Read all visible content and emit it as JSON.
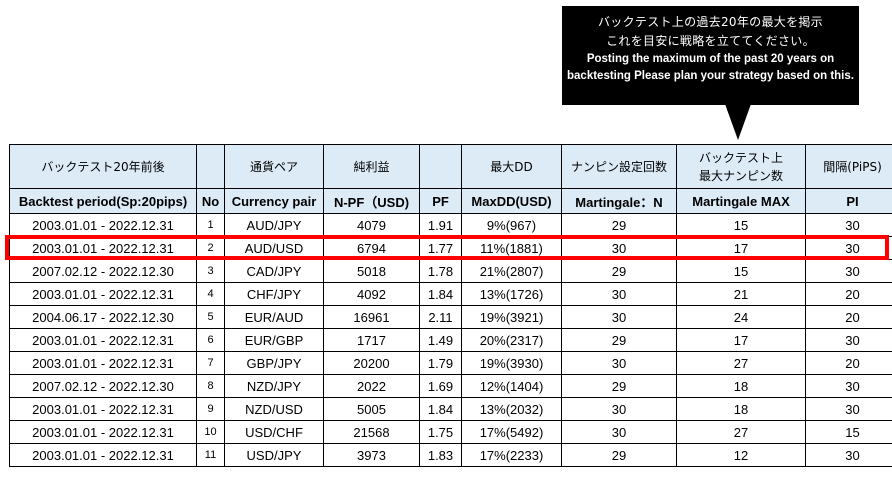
{
  "callout": {
    "line_jp_1": "バックテスト上の過去20年の最大を掲示",
    "line_jp_2": "これを目安に戦略を立ててください。",
    "line_en_1": "Posting the maximum of the past 20 years on",
    "line_en_2": "backtesting Please plan your strategy based on this."
  },
  "headers_jp": {
    "period": "バックテスト20年前後",
    "no": "",
    "pair": "通貨ペア",
    "npf": "純利益",
    "pf": "",
    "maxdd": "最大DD",
    "martingale_n": "ナンピン設定回数",
    "martingale_max_1": "バックテスト上",
    "martingale_max_2": "最大ナンピン数",
    "pips": "間隔(PiPS)"
  },
  "headers_en": {
    "period": "Backtest period(Sp:20pips)",
    "no": "No",
    "pair": "Currency pair",
    "npf": "N-PF（USD)",
    "pf": "PF",
    "maxdd": "MaxDD(USD)",
    "martingale_n": "Martingale：N",
    "martingale_max": "Martingale MAX",
    "pips": "PI"
  },
  "rows": [
    {
      "period": "2003.01.01 - 2022.12.31",
      "no": "1",
      "pair": "AUD/JPY",
      "npf": "4079",
      "pf": "1.91",
      "maxdd": "9%(967)",
      "n": "29",
      "max": "15",
      "pi": "30"
    },
    {
      "period": "2003.01.01 - 2022.12.31",
      "no": "2",
      "pair": "AUD/USD",
      "npf": "6794",
      "pf": "1.77",
      "maxdd": "11%(1881)",
      "n": "30",
      "max": "17",
      "pi": "30"
    },
    {
      "period": "2007.02.12 - 2022.12.30",
      "no": "3",
      "pair": "CAD/JPY",
      "npf": "5018",
      "pf": "1.78",
      "maxdd": "21%(2807)",
      "n": "29",
      "max": "15",
      "pi": "30"
    },
    {
      "period": "2003.01.01 - 2022.12.31",
      "no": "4",
      "pair": "CHF/JPY",
      "npf": "4092",
      "pf": "1.84",
      "maxdd": "13%(1726)",
      "n": "30",
      "max": "21",
      "pi": "20"
    },
    {
      "period": "2004.06.17 - 2022.12.30",
      "no": "5",
      "pair": "EUR/AUD",
      "npf": "16961",
      "pf": "2.11",
      "maxdd": "19%(3921)",
      "n": "30",
      "max": "24",
      "pi": "20"
    },
    {
      "period": "2003.01.01 - 2022.12.31",
      "no": "6",
      "pair": "EUR/GBP",
      "npf": "1717",
      "pf": "1.49",
      "maxdd": "20%(2317)",
      "n": "29",
      "max": "17",
      "pi": "30"
    },
    {
      "period": "2003.01.01 - 2022.12.31",
      "no": "7",
      "pair": "GBP/JPY",
      "npf": "20200",
      "pf": "1.79",
      "maxdd": "19%(3930)",
      "n": "30",
      "max": "27",
      "pi": "20"
    },
    {
      "period": "2007.02.12 - 2022.12.30",
      "no": "8",
      "pair": "NZD/JPY",
      "npf": "2022",
      "pf": "1.69",
      "maxdd": "12%(1404)",
      "n": "29",
      "max": "18",
      "pi": "30"
    },
    {
      "period": "2003.01.01 - 2022.12.31",
      "no": "9",
      "pair": "NZD/USD",
      "npf": "5005",
      "pf": "1.84",
      "maxdd": "13%(2032)",
      "n": "30",
      "max": "18",
      "pi": "30"
    },
    {
      "period": "2003.01.01 - 2022.12.31",
      "no": "10",
      "pair": "USD/CHF",
      "npf": "21568",
      "pf": "1.75",
      "maxdd": "17%(5492)",
      "n": "30",
      "max": "27",
      "pi": "15"
    },
    {
      "period": "2003.01.01 - 2022.12.31",
      "no": "11",
      "pair": "USD/JPY",
      "npf": "3973",
      "pf": "1.83",
      "maxdd": "17%(2233)",
      "n": "29",
      "max": "12",
      "pi": "30"
    }
  ],
  "colors": {
    "header_bg": "#ddebf7",
    "highlight": "#ff0000",
    "callout_bg": "#000000"
  }
}
